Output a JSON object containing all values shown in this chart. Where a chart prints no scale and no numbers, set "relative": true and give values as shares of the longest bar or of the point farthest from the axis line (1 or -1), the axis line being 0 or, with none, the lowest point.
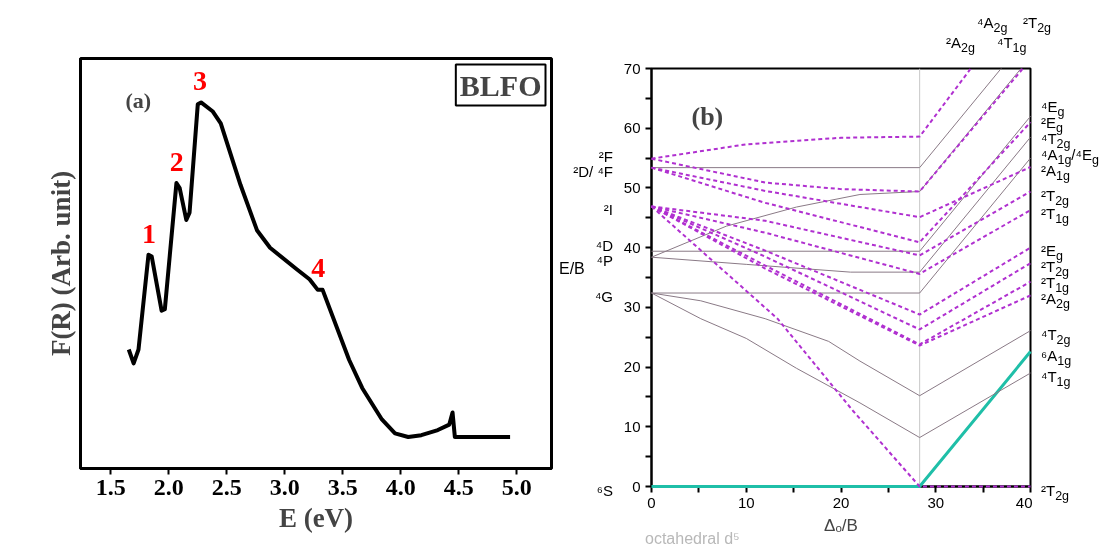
{
  "chart_data": [
    {
      "type": "line",
      "relative": true,
      "xlabel": "E (eV)",
      "ylabel": "F(R) (Arb. unit)",
      "xlim": [
        1.24,
        5.3
      ],
      "xticks": [
        {
          "value": 1.5,
          "label": "1.5"
        },
        {
          "value": 2,
          "label": "2.0"
        },
        {
          "value": 2.5,
          "label": "2.5"
        },
        {
          "value": 3,
          "label": "3.0"
        },
        {
          "value": 3.5,
          "label": "3.5"
        },
        {
          "value": 4,
          "label": "4.0"
        },
        {
          "value": 4.5,
          "label": "4.5"
        },
        {
          "value": 5,
          "label": "5.0"
        }
      ],
      "grid": false,
      "marker": "none",
      "line_style": "solid",
      "series": [
        {
          "color": "#000000",
          "x": [
            1.656,
            1.698,
            1.74,
            1.826,
            1.854,
            1.939,
            1.967,
            2.067,
            2.095,
            2.152,
            2.18,
            2.251,
            2.279,
            2.378,
            2.449,
            2.619,
            2.761,
            2.874,
            3.101,
            3.214,
            3.285,
            3.327,
            3.555,
            3.668,
            3.838,
            3.951,
            4.065,
            4.178,
            4.32,
            4.419,
            4.447,
            4.467,
            4.943
          ],
          "values": [
            0.325,
            0.287,
            0.325,
            0.584,
            0.579,
            0.431,
            0.435,
            0.78,
            0.766,
            0.679,
            0.699,
            0.995,
            1.0,
            0.976,
            0.943,
            0.775,
            0.651,
            0.603,
            0.545,
            0.517,
            0.488,
            0.488,
            0.297,
            0.22,
            0.134,
            0.096,
            0.086,
            0.091,
            0.105,
            0.12,
            0.153,
            0.086,
            0.086
          ]
        }
      ],
      "annotations": [
        "(a)",
        "BLFO",
        {
          "text": "1",
          "x": 1.83,
          "y": 0.584
        },
        {
          "text": "2",
          "x": 2.07,
          "y": 0.78
        },
        {
          "text": "3",
          "x": 2.27,
          "y": 1.0
        },
        {
          "text": "4",
          "x": 3.29,
          "y": 0.49
        }
      ]
    },
    {
      "type": "line",
      "xlabel": "Δₒ/B",
      "ylabel": "E/B",
      "xlim": [
        0,
        40
      ],
      "ylim": [
        0,
        70
      ],
      "xticks": [
        0,
        {
          "value": 5,
          "label": null
        },
        10,
        {
          "value": 15,
          "label": null
        },
        20,
        {
          "value": 25,
          "label": null
        },
        30,
        {
          "value": 35,
          "label": null
        },
        40
      ],
      "yticks": [
        0,
        {
          "value": 5,
          "label": null
        },
        10,
        {
          "value": 15,
          "label": null
        },
        20,
        {
          "value": 25,
          "label": null
        },
        30,
        {
          "value": 35,
          "label": null
        },
        40,
        {
          "value": 45,
          "label": null
        },
        50,
        {
          "value": 55,
          "label": null
        },
        60,
        {
          "value": 65,
          "label": null
        },
        70
      ],
      "grid": false,
      "marker": "none",
      "ref_lines": [
        {
          "axis": "x",
          "value": 28.3,
          "label": null,
          "color": "#c8c8c8"
        }
      ],
      "series": [
        {
          "color": "#1fbfa8",
          "line_style": "solid",
          "x": [
            0,
            28.3,
            40
          ],
          "values": [
            0,
            0,
            22.6
          ]
        },
        {
          "color": "#8a7a86",
          "line_style": "solid",
          "x": [
            0,
            5.2,
            10,
            15.3,
            22,
            28.3,
            40
          ],
          "values": [
            32.4,
            28.1,
            24.8,
            19.8,
            14,
            8.2,
            19.0
          ]
        },
        {
          "color": "#8a7a86",
          "line_style": "solid",
          "x": [
            0,
            5.2,
            12,
            18.7,
            22,
            28.3,
            40
          ],
          "values": [
            32.4,
            31.1,
            28.1,
            24.3,
            21,
            15.2,
            26.1
          ]
        },
        {
          "color": "#8a7a86",
          "line_style": "solid",
          "x": [
            0,
            28.3,
            40
          ],
          "values": [
            32.4,
            32.4,
            55.0
          ]
        },
        {
          "color": "#8a7a86",
          "line_style": "solid",
          "x": [
            0,
            28.3,
            40
          ],
          "values": [
            39.4,
            39.4,
            62.0
          ]
        },
        {
          "color": "#8a7a86",
          "line_style": "solid",
          "x": [
            0,
            28.3,
            36.9
          ],
          "values": [
            53.4,
            53.4,
            70
          ]
        },
        {
          "color": "#8a7a86",
          "line_style": "solid",
          "x": [
            0,
            10,
            21,
            28.3,
            40
          ],
          "values": [
            38.4,
            37.2,
            35.9,
            35.9,
            58.5
          ]
        },
        {
          "color": "#8a7a86",
          "line_style": "solid",
          "x": [
            0,
            7.9,
            15.3,
            22,
            28.3,
            39.0
          ],
          "values": [
            38.4,
            43.6,
            46.8,
            48.9,
            49.4,
            70
          ]
        },
        {
          "color": "#b030d0",
          "line_style": "dashed",
          "x": [
            0,
            10,
            20,
            28.3,
            33.7
          ],
          "values": [
            54.9,
            57.3,
            58.4,
            58.6,
            70
          ]
        },
        {
          "color": "#b030d0",
          "line_style": "dashed",
          "x": [
            0,
            12,
            20,
            28.3,
            39.2
          ],
          "values": [
            54.9,
            50.9,
            49.8,
            49.4,
            70
          ]
        },
        {
          "color": "#b030d0",
          "line_style": "dashed",
          "x": [
            0,
            12,
            28.3,
            40
          ],
          "values": [
            53.4,
            49.5,
            45.1,
            53.5
          ]
        },
        {
          "color": "#b030d0",
          "line_style": "dashed",
          "x": [
            0,
            12,
            28.3,
            40
          ],
          "values": [
            53.4,
            47.5,
            40.9,
            61.0
          ]
        },
        {
          "color": "#b030d0",
          "line_style": "dashed",
          "x": [
            0,
            12,
            28.3,
            40
          ],
          "values": [
            46.9,
            44.5,
            38.7,
            49.4
          ]
        },
        {
          "color": "#b030d0",
          "line_style": "dashed",
          "x": [
            0,
            12,
            28.3,
            40
          ],
          "values": [
            46.9,
            42.5,
            35.6,
            46.3
          ]
        },
        {
          "color": "#b030d0",
          "line_style": "dashed",
          "x": [
            0,
            13.3,
            21.3,
            28.3,
            40
          ],
          "values": [
            46.9,
            28.1,
            12.6,
            0,
            0
          ]
        },
        {
          "color": "#b030d0",
          "line_style": "dashed",
          "x": [
            0,
            12,
            28.3,
            40
          ],
          "values": [
            46.9,
            39.5,
            28.8,
            40.0
          ]
        },
        {
          "color": "#b030d0",
          "line_style": "dashed",
          "x": [
            0,
            12,
            28.3,
            40
          ],
          "values": [
            46.9,
            38.5,
            26.3,
            37.4
          ]
        },
        {
          "color": "#b030d0",
          "line_style": "dashed",
          "x": [
            0,
            12,
            28.3,
            40
          ],
          "values": [
            46.9,
            37.0,
            23.8,
            34.3
          ]
        },
        {
          "color": "#b030d0",
          "line_style": "dashed",
          "x": [
            0,
            12,
            28.3,
            40
          ],
          "values": [
            46.9,
            36.5,
            23.6,
            32.0
          ]
        }
      ],
      "annotations": [
        "(b)",
        "octahedral d⁵",
        {
          "text": "²F",
          "x": 0,
          "y": 54.9
        },
        {
          "text": "²D/ ⁴F",
          "x": 0,
          "y": 53.4
        },
        {
          "text": "²I",
          "x": 0,
          "y": 46.9
        },
        {
          "text": "⁴D",
          "x": 0,
          "y": 39.4
        },
        {
          "text": "⁴P",
          "x": 0,
          "y": 38.4
        },
        {
          "text": "⁴G",
          "x": 0,
          "y": 32.4
        },
        {
          "text": "⁶S",
          "x": 0,
          "y": 0
        },
        {
          "text": "²A$_{2g}$",
          "x": 33.7,
          "y": 70
        },
        {
          "text": "⁴A$_{2g}$",
          "x": 36.9,
          "y": 70
        },
        {
          "text": "²T$_{2g}$",
          "x": 39.2,
          "y": 70
        },
        {
          "text": "⁴T$_{1g}$",
          "x": 39.0,
          "y": 70
        },
        {
          "text": "⁴E$_{g}$",
          "x": 40,
          "y": 62.0
        },
        {
          "text": "²E$_{g}$",
          "x": 40,
          "y": 61.0
        },
        {
          "text": "⁴T$_{2g}$",
          "x": 40,
          "y": 58.5
        },
        {
          "text": "⁴A$_{1g}$/⁴E$_{g}$",
          "x": 40,
          "y": 55.0
        },
        {
          "text": "²A$_{1g}$",
          "x": 40,
          "y": 53.5
        },
        {
          "text": "²T$_{2g}$",
          "x": 40,
          "y": 49.4
        },
        {
          "text": "²T$_{1g}$",
          "x": 40,
          "y": 46.3
        },
        {
          "text": "²E$_{g}$",
          "x": 40,
          "y": 40.0
        },
        {
          "text": "²T$_{2g}$",
          "x": 40,
          "y": 37.4
        },
        {
          "text": "²T$_{1g}$",
          "x": 40,
          "y": 34.3
        },
        {
          "text": "²A$_{2g}$",
          "x": 40,
          "y": 32.0
        },
        {
          "text": "⁴T$_{2g}$",
          "x": 40,
          "y": 26.1
        },
        {
          "text": "⁶A$_{1g}$",
          "x": 40,
          "y": 22.6
        },
        {
          "text": "⁴T$_{1g}$",
          "x": 40,
          "y": 19.0
        },
        {
          "text": "²T$_{2g}$",
          "x": 40,
          "y": 0
        }
      ]
    }
  ]
}
